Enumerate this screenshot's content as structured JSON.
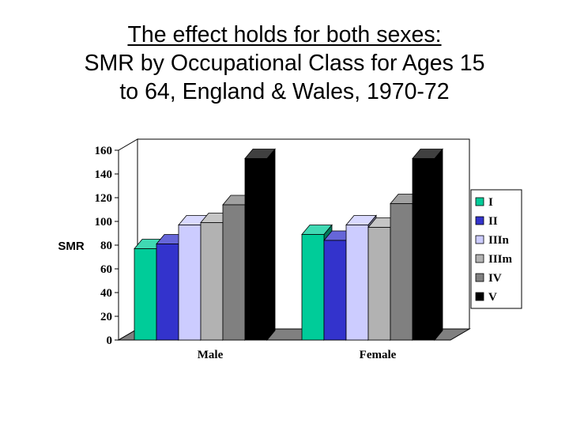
{
  "title_lines": [
    "The effect holds for both sexes:",
    "SMR by Occupational Class for Ages 15",
    "to 64, England & Wales, 1970-72"
  ],
  "colors": {
    "I": "#00cc99",
    "II": "#3333cc",
    "IIIn": "#ccccff",
    "IIIm": "#b2b2b2",
    "IV": "#808080",
    "V": "#000000",
    "wall": "#ffffff",
    "floor": "#808080"
  },
  "chart_data": {
    "type": "bar",
    "title": "SMR by Occupational Class for Ages 15 to 64, England & Wales, 1970-72",
    "xlabel": "",
    "ylabel": "SMR",
    "ylim": [
      0,
      160
    ],
    "yticks": [
      0,
      20,
      40,
      60,
      80,
      100,
      120,
      140,
      160
    ],
    "categories": [
      "Male",
      "Female"
    ],
    "series": [
      {
        "name": "I",
        "values": [
          77,
          89
        ]
      },
      {
        "name": "II",
        "values": [
          81,
          84
        ]
      },
      {
        "name": "IIIn",
        "values": [
          97,
          97
        ]
      },
      {
        "name": "IIIm",
        "values": [
          99,
          95
        ]
      },
      {
        "name": "IV",
        "values": [
          114,
          115
        ]
      },
      {
        "name": "V",
        "values": [
          153,
          153
        ]
      }
    ],
    "legend_position": "right",
    "grid": false,
    "style": "3d"
  }
}
